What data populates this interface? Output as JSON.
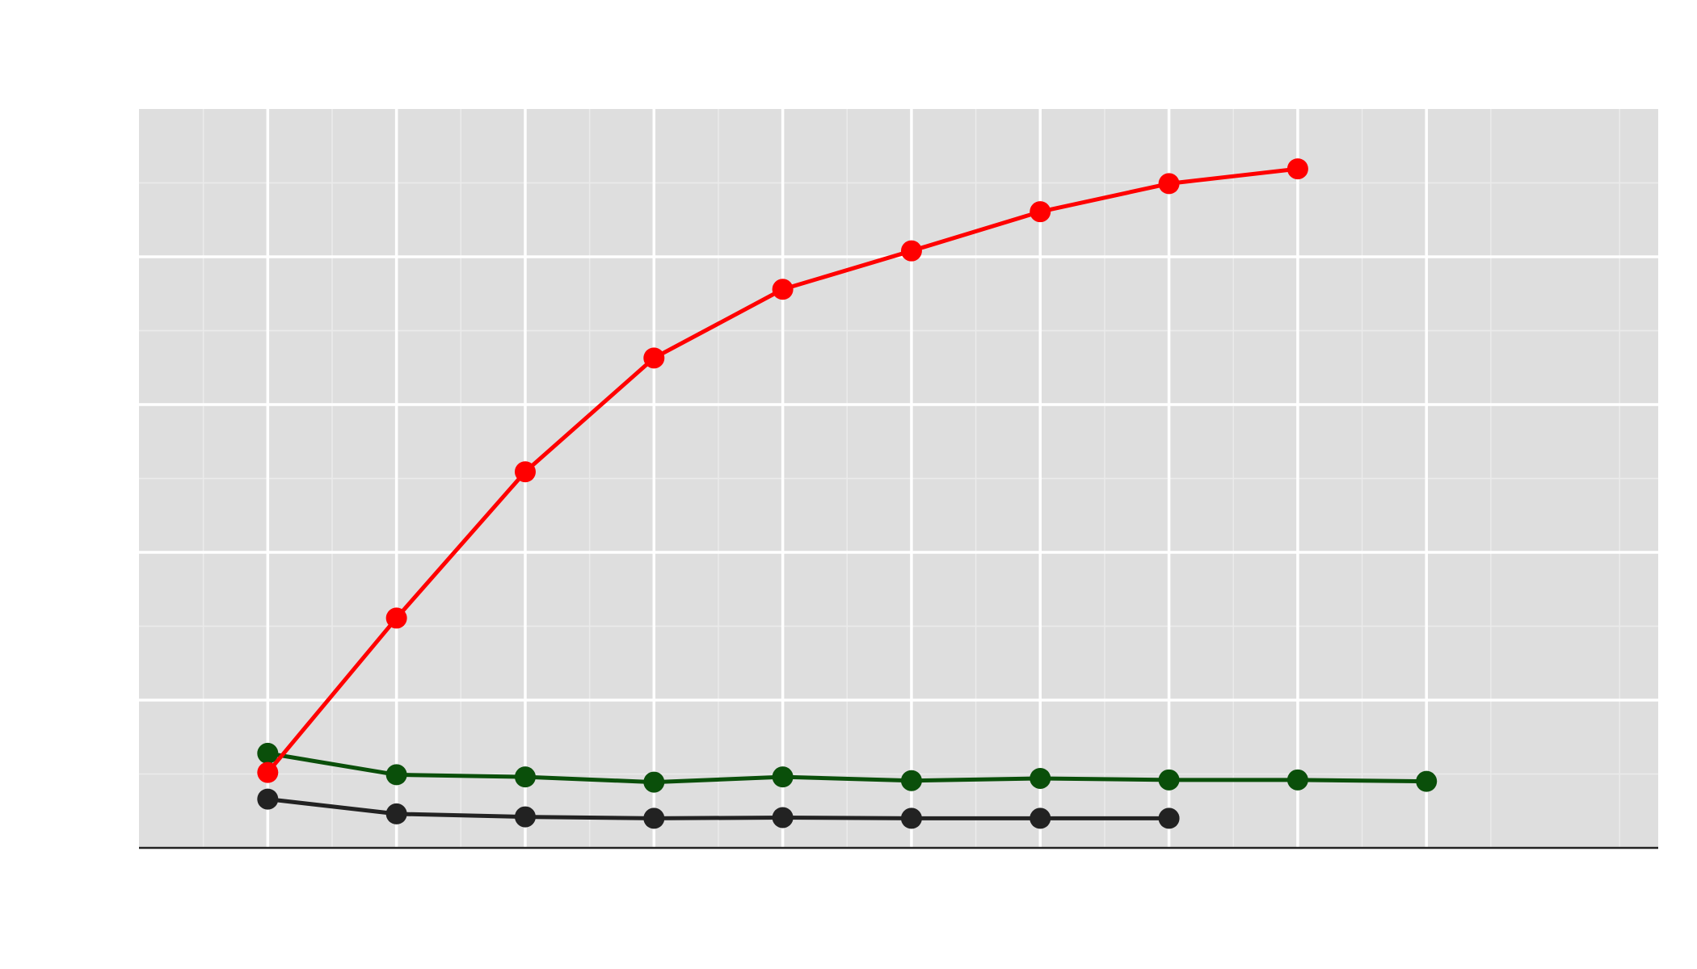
{
  "chart_data": {
    "type": "line",
    "title": "",
    "xlabel": "",
    "ylabel": "",
    "xlim": [
      0,
      11.8
    ],
    "ylim": [
      0,
      100
    ],
    "x_major_ticks": [
      1,
      2,
      3,
      4,
      5,
      6,
      7,
      8,
      9,
      10
    ],
    "y_major_ticks": [
      20,
      40,
      60,
      80
    ],
    "grid": true,
    "legend": "none",
    "background": "#dedede",
    "series": [
      {
        "color": "#ff0000",
        "x": [
          1,
          2,
          3,
          4,
          5,
          6,
          7,
          8,
          9
        ],
        "y": [
          10.2,
          31.1,
          50.9,
          66.3,
          75.6,
          80.8,
          86.1,
          89.9,
          91.9
        ]
      },
      {
        "color": "#0a4f0a",
        "x": [
          1,
          2,
          3,
          4,
          5,
          6,
          7,
          8,
          9,
          10
        ],
        "y": [
          12.8,
          9.9,
          9.6,
          8.9,
          9.6,
          9.1,
          9.4,
          9.2,
          9.2,
          9.0
        ]
      },
      {
        "color": "#222222",
        "x": [
          1,
          2,
          3,
          4,
          5,
          6,
          7,
          8
        ],
        "y": [
          6.6,
          4.6,
          4.2,
          4.0,
          4.1,
          4.0,
          4.0,
          4.0
        ]
      }
    ]
  }
}
